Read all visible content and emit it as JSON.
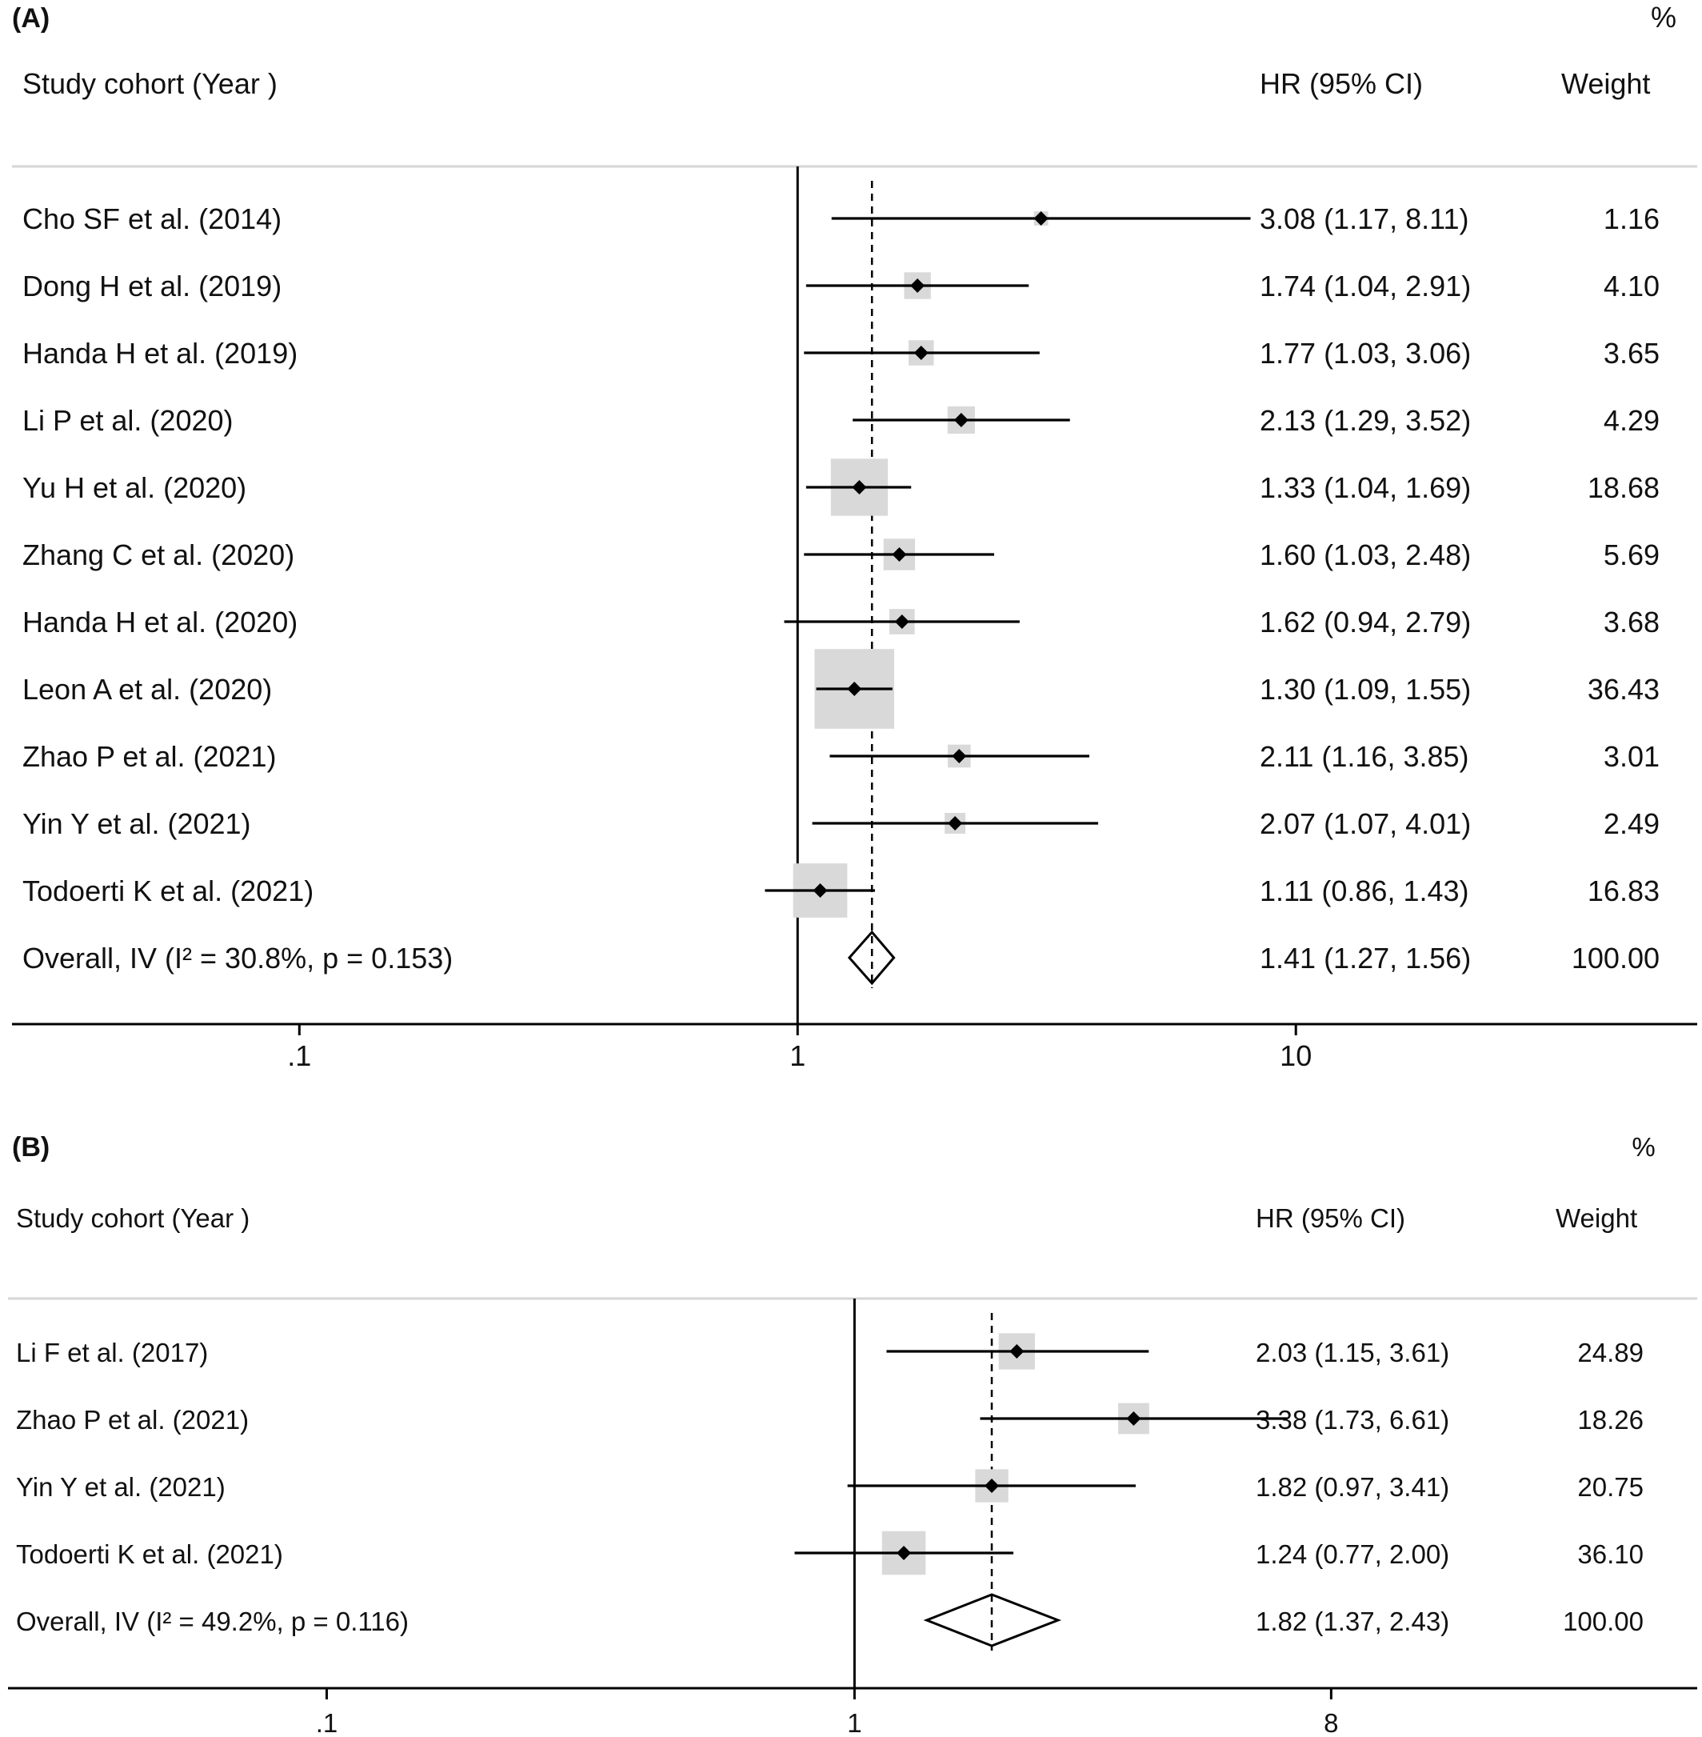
{
  "chart_data": [
    {
      "type": "forest",
      "panel_label": "(A)",
      "header": {
        "study_label": "Study cohort (Year )",
        "effect_label": "HR (95% CI)",
        "weight_label": "Weight",
        "weight_unit": "%"
      },
      "x_scale": "log",
      "x_ticks": [
        ".1",
        "1",
        "10"
      ],
      "x_tick_values": [
        0.1,
        1,
        10
      ],
      "xlim": [
        0.0265,
        63.9
      ],
      "reference_line": 1,
      "pooled_estimate": 1.41,
      "studies": [
        {
          "label": "Cho SF et al. (2014)",
          "hr": 3.08,
          "lo": 1.17,
          "hi": 8.11,
          "hr_text": "3.08 (1.17, 8.11)",
          "weight": 1.16,
          "weight_text": "1.16"
        },
        {
          "label": "Dong H et al. (2019)",
          "hr": 1.74,
          "lo": 1.04,
          "hi": 2.91,
          "hr_text": "1.74 (1.04, 2.91)",
          "weight": 4.1,
          "weight_text": "4.10"
        },
        {
          "label": "Handa H et al. (2019)",
          "hr": 1.77,
          "lo": 1.03,
          "hi": 3.06,
          "hr_text": "1.77 (1.03, 3.06)",
          "weight": 3.65,
          "weight_text": "3.65"
        },
        {
          "label": "Li P et al. (2020)",
          "hr": 2.13,
          "lo": 1.29,
          "hi": 3.52,
          "hr_text": "2.13 (1.29, 3.52)",
          "weight": 4.29,
          "weight_text": "4.29"
        },
        {
          "label": "Yu H et al. (2020)",
          "hr": 1.33,
          "lo": 1.04,
          "hi": 1.69,
          "hr_text": "1.33 (1.04, 1.69)",
          "weight": 18.68,
          "weight_text": "18.68"
        },
        {
          "label": "Zhang C et al. (2020)",
          "hr": 1.6,
          "lo": 1.03,
          "hi": 2.48,
          "hr_text": "1.60 (1.03, 2.48)",
          "weight": 5.69,
          "weight_text": "5.69"
        },
        {
          "label": "Handa H et al. (2020)",
          "hr": 1.62,
          "lo": 0.94,
          "hi": 2.79,
          "hr_text": "1.62 (0.94, 2.79)",
          "weight": 3.68,
          "weight_text": "3.68"
        },
        {
          "label": "Leon A et al. (2020)",
          "hr": 1.3,
          "lo": 1.09,
          "hi": 1.55,
          "hr_text": "1.30 (1.09, 1.55)",
          "weight": 36.43,
          "weight_text": "36.43"
        },
        {
          "label": "Zhao P et al. (2021)",
          "hr": 2.11,
          "lo": 1.16,
          "hi": 3.85,
          "hr_text": "2.11 (1.16, 3.85)",
          "weight": 3.01,
          "weight_text": "3.01"
        },
        {
          "label": "Yin Y et al. (2021)",
          "hr": 2.07,
          "lo": 1.07,
          "hi": 4.01,
          "hr_text": "2.07 (1.07, 4.01)",
          "weight": 2.49,
          "weight_text": "2.49"
        },
        {
          "label": "Todoerti K et al. (2021)",
          "hr": 1.11,
          "lo": 0.86,
          "hi": 1.43,
          "hr_text": "1.11 (0.86, 1.43)",
          "weight": 16.83,
          "weight_text": "16.83"
        }
      ],
      "overall": {
        "label": "Overall, IV (I² = 30.8%, p = 0.153)",
        "hr": 1.41,
        "lo": 1.27,
        "hi": 1.56,
        "hr_text": "1.41 (1.27, 1.56)",
        "weight_text": "100.00"
      }
    },
    {
      "type": "forest",
      "panel_label": "(B)",
      "header": {
        "study_label": "Study cohort (Year )",
        "effect_label": "HR (95% CI)",
        "weight_label": "Weight",
        "weight_unit": "%"
      },
      "x_scale": "log",
      "x_ticks": [
        ".1",
        "1",
        "8"
      ],
      "x_tick_values": [
        0.1,
        1,
        8
      ],
      "xlim": [
        0.0249,
        39.5
      ],
      "reference_line": 1,
      "pooled_estimate": 1.82,
      "studies": [
        {
          "label": "Li F et al. (2017)",
          "hr": 2.03,
          "lo": 1.15,
          "hi": 3.61,
          "hr_text": "2.03 (1.15, 3.61)",
          "weight": 24.89,
          "weight_text": "24.89"
        },
        {
          "label": "Zhao P et al. (2021)",
          "hr": 3.38,
          "lo": 1.73,
          "hi": 6.61,
          "hr_text": "3.38 (1.73, 6.61)",
          "weight": 18.26,
          "weight_text": "18.26"
        },
        {
          "label": "Yin Y et al. (2021)",
          "hr": 1.82,
          "lo": 0.97,
          "hi": 3.41,
          "hr_text": "1.82 (0.97, 3.41)",
          "weight": 20.75,
          "weight_text": "20.75"
        },
        {
          "label": "Todoerti K et al. (2021)",
          "hr": 1.24,
          "lo": 0.77,
          "hi": 2.0,
          "hr_text": "1.24 (0.77, 2.00)",
          "weight": 36.1,
          "weight_text": "36.10"
        }
      ],
      "overall": {
        "label": "Overall, IV (I² = 49.2%, p = 0.116)",
        "hr": 1.82,
        "lo": 1.37,
        "hi": 2.43,
        "hr_text": "1.82 (1.37, 2.43)",
        "weight_text": "100.00"
      }
    }
  ]
}
